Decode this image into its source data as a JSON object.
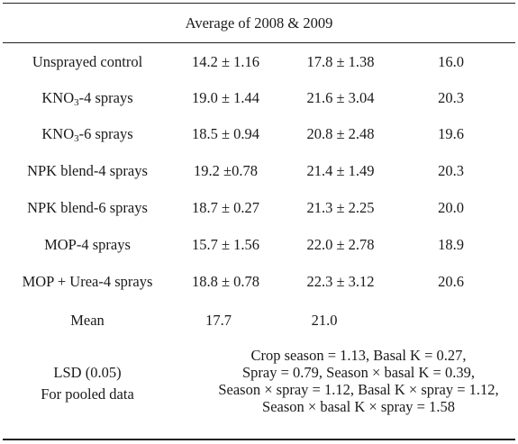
{
  "header": {
    "title": "Average of 2008 & 2009"
  },
  "rows": [
    {
      "treatment_pre": "Unsprayed control",
      "treatment_sub": "",
      "treatment_post": "",
      "v1": "14.2 ± 1.16",
      "v2": "17.8 ± 1.38",
      "v3": "16.0"
    },
    {
      "treatment_pre": "KNO",
      "treatment_sub": "3",
      "treatment_post": "-4 sprays",
      "v1": "19.0 ± 1.44",
      "v2": "21.6 ± 3.04",
      "v3": "20.3"
    },
    {
      "treatment_pre": "KNO",
      "treatment_sub": "3",
      "treatment_post": "-6 sprays",
      "v1": "18.5 ± 0.94",
      "v2": "20.8 ± 2.48",
      "v3": "19.6"
    },
    {
      "treatment_pre": "NPK blend-4 sprays",
      "treatment_sub": "",
      "treatment_post": "",
      "v1": "19.2 ±0.78",
      "v2": "21.4 ± 1.49",
      "v3": "20.3"
    },
    {
      "treatment_pre": "NPK blend-6 sprays",
      "treatment_sub": "",
      "treatment_post": "",
      "v1": "18.7 ± 0.27",
      "v2": "21.3 ± 2.25",
      "v3": "20.0"
    },
    {
      "treatment_pre": "MOP-4 sprays",
      "treatment_sub": "",
      "treatment_post": "",
      "v1": "15.7 ± 1.56",
      "v2": "22.0 ± 2.78",
      "v3": "18.9"
    },
    {
      "treatment_pre": "MOP + Urea-4 sprays",
      "treatment_sub": "",
      "treatment_post": "",
      "v1": "18.8 ± 0.78",
      "v2": "22.3 ± 3.12",
      "v3": "20.6"
    }
  ],
  "mean": {
    "label": "Mean",
    "v1": "17.7",
    "v2": "21.0"
  },
  "lsd": {
    "label_line1": "LSD (0.05)",
    "label_line2": "For pooled data",
    "values": [
      "Crop season = 1.13, Basal K = 0.27,",
      "Spray = 0.79, Season × basal K = 0.39,",
      "Season × spray = 1.12, Basal K × spray = 1.12,",
      "Season × basal K × spray = 1.58"
    ]
  }
}
